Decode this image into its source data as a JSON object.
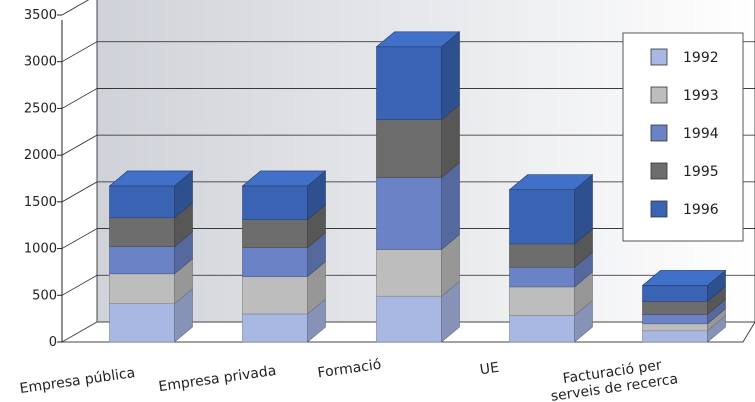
{
  "chart_data": {
    "type": "bar",
    "stacked": true,
    "three_d": true,
    "categories": [
      [
        "Empresa pública"
      ],
      [
        "Empresa privada"
      ],
      [
        "Formació"
      ],
      [
        "UE"
      ],
      [
        "Facturació per",
        "serveis de recerca"
      ]
    ],
    "series": [
      {
        "name": "1992",
        "color": "#a9b8e3",
        "values": [
          410,
          300,
          490,
          285,
          120
        ]
      },
      {
        "name": "1993",
        "color": "#bdbdbd",
        "values": [
          320,
          400,
          500,
          305,
          75
        ]
      },
      {
        "name": "1994",
        "color": "#6b83c6",
        "values": [
          290,
          310,
          770,
          210,
          100
        ]
      },
      {
        "name": "1995",
        "color": "#6d6d6d",
        "values": [
          310,
          300,
          620,
          250,
          140
        ]
      },
      {
        "name": "1996",
        "color": "#3a64b3",
        "values": [
          340,
          360,
          780,
          580,
          170
        ]
      }
    ],
    "ylim": [
      0,
      3500
    ],
    "yticks": [
      0,
      500,
      1000,
      1500,
      2000,
      2500,
      3000,
      3500
    ],
    "grid": true,
    "legend": "right"
  }
}
